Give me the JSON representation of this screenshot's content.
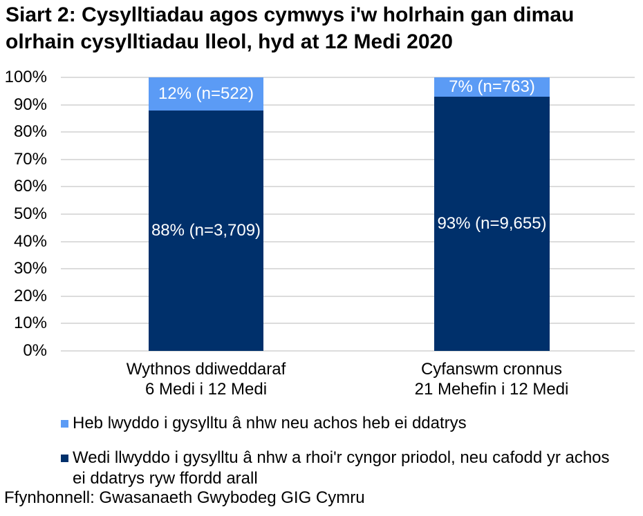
{
  "title": "Siart 2: Cysylltiadau agos cymwys i'w holrhain gan dimau olrhain cysylltiadau lleol, hyd at 12 Medi 2020",
  "source": "Ffynhonnell: Gwasanaeth Gwybodeg GIG Cymru",
  "colors": {
    "dark_blue": "#00306B",
    "light_blue": "#5B9BF5",
    "gridline": "#DCDCDC",
    "background": "#FFFFFF"
  },
  "chart_data": {
    "type": "bar",
    "stacked": true,
    "title": "Siart 2: Cysylltiadau agos cymwys i'w holrhain gan dimau olrhain cysylltiadau lleol, hyd at 12 Medi 2020",
    "categories": [
      {
        "line1": "Wythnos ddiweddaraf",
        "line2": "6 Medi i 12 Medi"
      },
      {
        "line1": "Cyfanswm cronnus",
        "line2": "21 Mehefin i 12 Medi"
      }
    ],
    "series": [
      {
        "name": "Wedi llwyddo i gysylltu â nhw a rhoi'r cyngor priodol, neu cafodd yr achos ei ddatrys ryw ffordd arall",
        "color": "#00306B",
        "values_pct": [
          88,
          93
        ],
        "counts": [
          3709,
          9655
        ],
        "labels": [
          "88% (n=3,709)",
          "93% (n=9,655)"
        ]
      },
      {
        "name": "Heb lwyddo i gysylltu â nhw neu achos heb ei ddatrys",
        "color": "#5B9BF5",
        "values_pct": [
          12,
          7
        ],
        "counts": [
          522,
          763
        ],
        "labels": [
          "12% (n=522)",
          "7% (n=763)"
        ]
      }
    ],
    "y_ticks": [
      "0%",
      "10%",
      "20%",
      "30%",
      "40%",
      "50%",
      "60%",
      "70%",
      "80%",
      "90%",
      "100%"
    ],
    "ylim": [
      0,
      100
    ],
    "grid": true,
    "legend_position": "bottom"
  },
  "legend": [
    {
      "label": "Heb lwyddo i gysylltu â nhw neu achos heb ei ddatrys",
      "color": "#5B9BF5"
    },
    {
      "label": "Wedi llwyddo i gysylltu â nhw a rhoi'r cyngor priodol, neu cafodd yr achos ei ddatrys ryw ffordd arall",
      "color": "#00306B"
    }
  ]
}
